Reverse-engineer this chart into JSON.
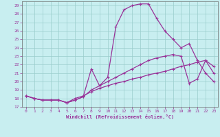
{
  "xlabel": "Windchill (Refroidissement éolien,°C)",
  "bg_color": "#c8eef0",
  "line_color": "#993399",
  "grid_color": "#99cccc",
  "xlim": [
    -0.5,
    23.5
  ],
  "ylim": [
    17,
    29.5
  ],
  "xticks": [
    0,
    1,
    2,
    3,
    4,
    5,
    6,
    7,
    8,
    9,
    10,
    11,
    12,
    13,
    14,
    15,
    16,
    17,
    18,
    19,
    20,
    21,
    22,
    23
  ],
  "yticks": [
    17,
    18,
    19,
    20,
    21,
    22,
    23,
    24,
    25,
    26,
    27,
    28,
    29
  ],
  "line1_x": [
    0,
    1,
    2,
    3,
    4,
    5,
    6,
    7,
    8,
    9,
    10,
    11,
    12,
    13,
    14,
    15,
    16,
    17,
    18,
    19,
    20,
    21,
    22,
    23
  ],
  "line1_y": [
    18.3,
    18.0,
    17.8,
    17.8,
    17.8,
    17.5,
    17.8,
    18.2,
    19.0,
    19.5,
    20.5,
    26.5,
    28.5,
    29.0,
    29.2,
    29.2,
    27.5,
    26.0,
    25.0,
    24.0,
    24.5,
    22.5,
    21.0,
    20.0
  ],
  "line2_x": [
    0,
    1,
    2,
    3,
    4,
    5,
    6,
    7,
    8,
    9,
    10,
    11,
    12,
    13,
    14,
    15,
    16,
    17,
    18,
    19,
    20,
    21,
    22,
    23
  ],
  "line2_y": [
    18.3,
    18.0,
    17.8,
    17.8,
    17.8,
    17.5,
    17.8,
    18.2,
    21.5,
    19.5,
    20.0,
    20.5,
    21.0,
    21.5,
    22.0,
    22.5,
    22.8,
    23.0,
    23.2,
    23.0,
    19.8,
    20.3,
    22.5,
    21.0
  ],
  "line3_x": [
    0,
    1,
    2,
    3,
    4,
    5,
    6,
    7,
    8,
    9,
    10,
    11,
    12,
    13,
    14,
    15,
    16,
    17,
    18,
    19,
    20,
    21,
    22,
    23
  ],
  "line3_y": [
    18.3,
    18.0,
    17.8,
    17.8,
    17.8,
    17.5,
    18.0,
    18.3,
    18.8,
    19.2,
    19.5,
    19.8,
    20.0,
    20.3,
    20.5,
    20.8,
    21.0,
    21.2,
    21.5,
    21.8,
    22.0,
    22.3,
    22.5,
    21.8
  ]
}
